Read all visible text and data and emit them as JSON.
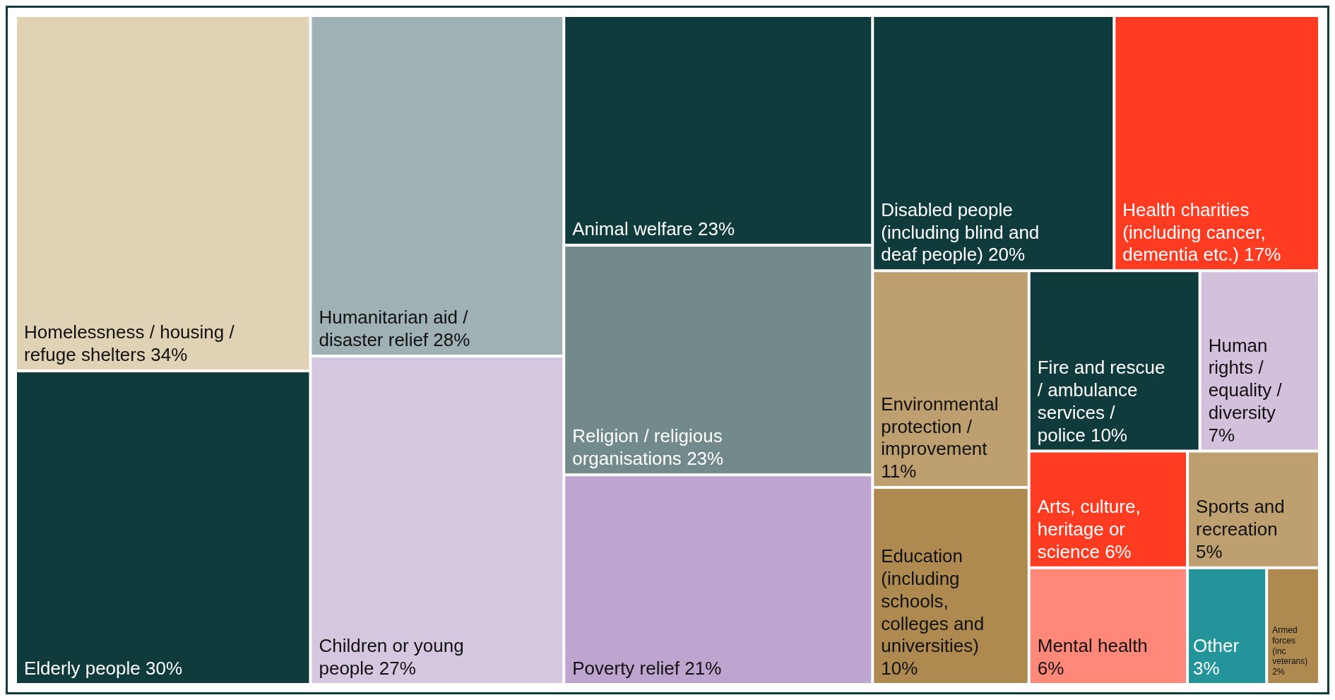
{
  "chart_data": {
    "type": "other",
    "categories": [
      "Homelessness / housing / refuge shelters",
      "Elderly people",
      "Humanitarian aid / disaster relief",
      "Children or young people",
      "Animal welfare",
      "Religion / religious organisations",
      "Poverty relief",
      "Disabled people (including blind and deaf people)",
      "Health charities (including cancer, dementia etc.)",
      "Environmental protection / improvement",
      "Education (including schools, colleges and universities)",
      "Fire and rescue / ambulance services / police",
      "Human rights / equality / diversity",
      "Arts, culture, heritage or science",
      "Mental health",
      "Sports and recreation",
      "Other",
      "Armed forces (inc veterans)"
    ],
    "values": [
      34,
      30,
      28,
      27,
      23,
      23,
      21,
      20,
      17,
      11,
      10,
      10,
      7,
      6,
      6,
      5,
      3,
      2
    ],
    "value_labels": [
      "34%",
      "30%",
      "28%",
      "27%",
      "23%",
      "23%",
      "21%",
      "20%",
      "17%",
      "11%",
      "10%",
      "10%",
      "7%",
      "6%",
      "6%",
      "5%",
      "3%",
      "2%"
    ],
    "colors": [
      "#e0d2b4",
      "#0f3b3c",
      "#9fb1b4",
      "#d6c7e0",
      "#0f3b3c",
      "#728a8b",
      "#bea5cf",
      "#0f3b3c",
      "#ff3b21",
      "#bea070",
      "#ae8a50",
      "#0f3b3c",
      "#d3c0dc",
      "#ff3b21",
      "#ff8878",
      "#bea070",
      "#23959a",
      "#ae8a50"
    ]
  }
}
